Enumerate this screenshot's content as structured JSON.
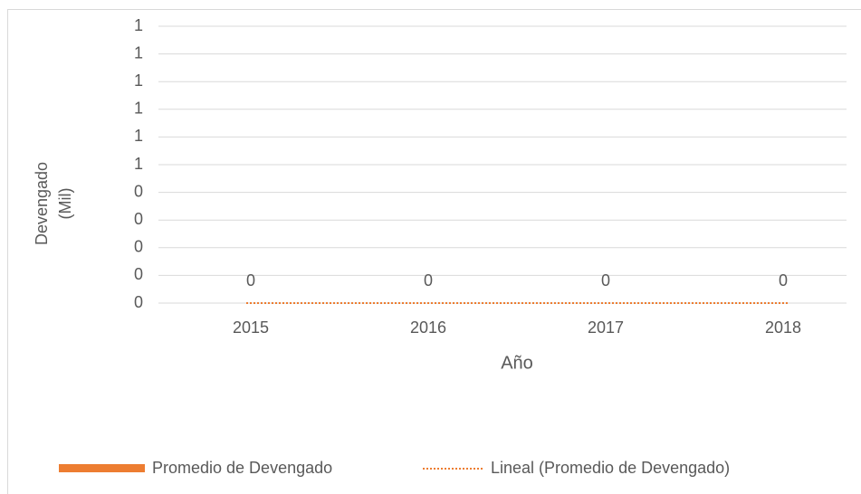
{
  "chart_data": {
    "type": "bar",
    "ylabel": [
      "Devengado",
      "(Mil)"
    ],
    "xlabel": "Año",
    "categories": [
      "2015",
      "2016",
      "2017",
      "2018"
    ],
    "series": [
      {
        "name": "Promedio de Devengado",
        "color": "#ed7d31",
        "values": [
          0,
          0,
          0,
          0
        ]
      }
    ],
    "trendline": {
      "name": "Lineal (Promedio de Devengado)",
      "color": "#ed7d31",
      "values": [
        0,
        0,
        0,
        0
      ]
    },
    "ylim": [
      0,
      1
    ],
    "yticks": [
      0,
      {
        "value": 0.1,
        "label": "0"
      },
      {
        "value": 0.2,
        "label": "0"
      },
      {
        "value": 0.3,
        "label": "0"
      },
      {
        "value": 0.4,
        "label": "0"
      },
      {
        "value": 0.5,
        "label": "1"
      },
      {
        "value": 0.6,
        "label": "1"
      },
      {
        "value": 0.7,
        "label": "1"
      },
      {
        "value": 0.8,
        "label": "1"
      },
      {
        "value": 0.9,
        "label": "1"
      },
      1
    ],
    "grid": true,
    "legend": "bottom"
  }
}
